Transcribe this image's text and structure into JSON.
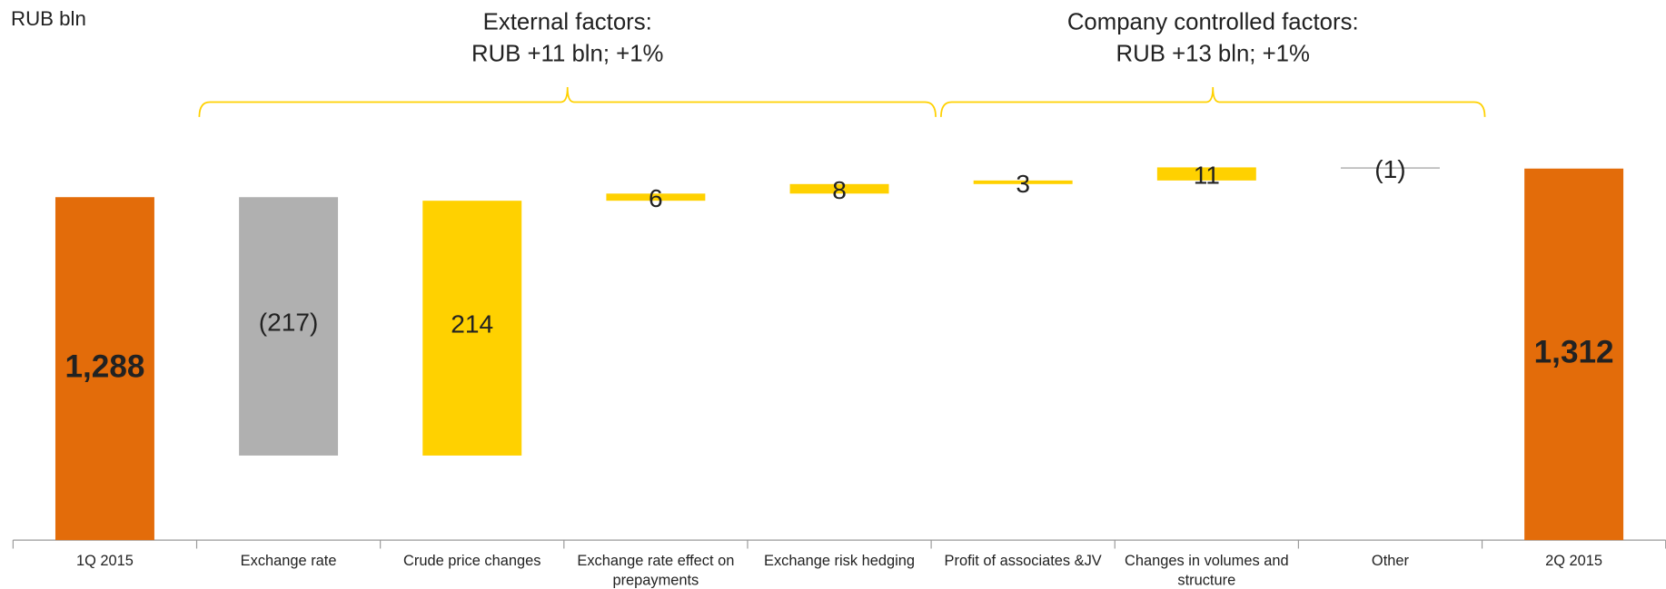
{
  "chart_data": {
    "type": "waterfall",
    "unit_label": "RUB bln",
    "categories": [
      "1Q 2015",
      "Exchange rate",
      "Crude price changes",
      "Exchange rate effect on prepayments",
      "Exchange risk hedging",
      "Profit of associates &JV",
      "Changes in volumes and structure",
      "Other",
      "2Q 2015"
    ],
    "values": [
      1288,
      -217,
      214,
      6,
      8,
      3,
      11,
      -1,
      1312
    ],
    "value_labels": [
      "1,288",
      "(217)",
      "214",
      "6",
      "8",
      "3",
      "11",
      "(1)",
      "1,312"
    ],
    "measures": [
      "total",
      "relative",
      "relative",
      "relative",
      "relative",
      "relative",
      "relative",
      "relative",
      "total"
    ],
    "colors": [
      "#e36c0a",
      "#b0b0b0",
      "#ffd100",
      "#ffd100",
      "#ffd100",
      "#ffd100",
      "#ffd100",
      "#a6a6a6",
      "#e36c0a"
    ],
    "ylim": [
      1000,
      1350
    ],
    "groups": [
      {
        "label": "External factors:",
        "sublabel": "RUB +11 bln; +1%"
      },
      {
        "label": "Company controlled factors:",
        "sublabel": "RUB +13 bln; +1%"
      }
    ]
  }
}
